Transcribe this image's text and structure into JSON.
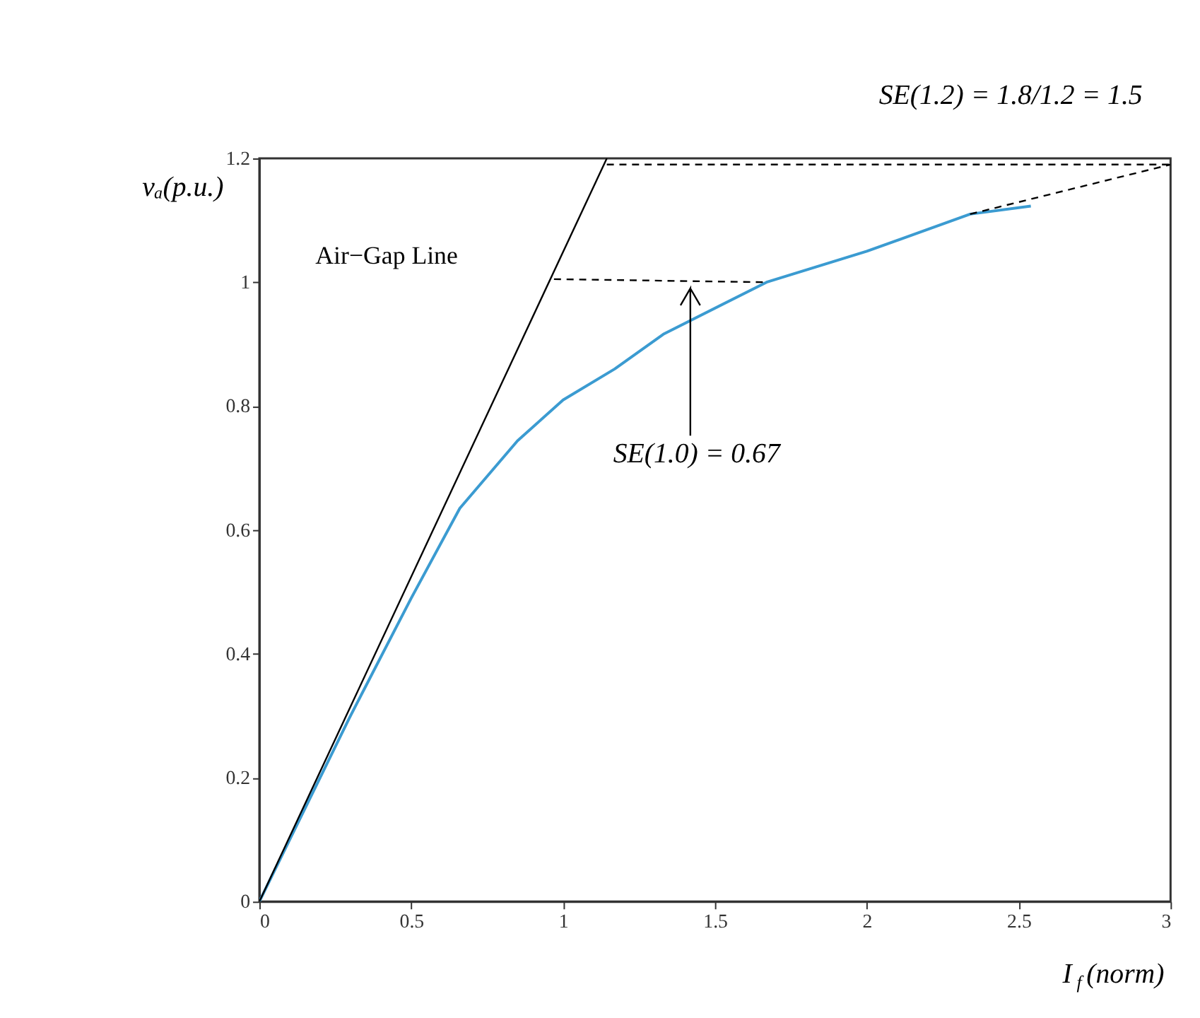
{
  "chart_data": {
    "type": "line",
    "xlabel": "I$_{f}$(norm)",
    "ylabel": "vₐ(p.u.)",
    "xlim": [
      0,
      3
    ],
    "xticks": [
      0,
      0.5,
      1,
      1.5,
      2,
      2.5,
      3
    ],
    "ylim": [
      0,
      1.2
    ],
    "yticks": [
      0,
      0.2,
      0.4,
      0.6,
      0.8,
      1,
      1.2
    ],
    "grid": false,
    "legend": false,
    "marker": "none",
    "series": [
      {
        "color": "#3b9bd1",
        "line_style": "solid",
        "x": [
          0,
          0.1,
          0.3,
          0.5,
          0.66,
          0.85,
          1.0,
          1.17,
          1.33,
          1.67,
          2.0,
          2.34,
          2.54
        ],
        "values": [
          0,
          0.1,
          0.3,
          0.49,
          0.635,
          0.744,
          0.81,
          0.86,
          0.916,
          1.0,
          1.05,
          1.11,
          1.123
        ]
      },
      {
        "name": "Air−Gap Line",
        "color": "#000000",
        "line_style": "solid",
        "x": [
          0,
          1.144
        ],
        "values": [
          0,
          1.2
        ]
      },
      {
        "color": "#000000",
        "line_style": "dashed",
        "x": [
          0.97,
          1.67
        ],
        "values": [
          1.005,
          1.0
        ]
      },
      {
        "color": "#000000",
        "line_style": "dashed",
        "x": [
          1.144,
          3
        ],
        "values": [
          1.19,
          1.19
        ]
      },
      {
        "color": "#000000",
        "line_style": "dashed",
        "x": [
          2.34,
          3
        ],
        "values": [
          1.11,
          1.19
        ]
      }
    ],
    "annotations": [
      "SE(1.0) = 0.67",
      "SE(1.2) = 1.8/1.2 = 1.5"
    ]
  }
}
